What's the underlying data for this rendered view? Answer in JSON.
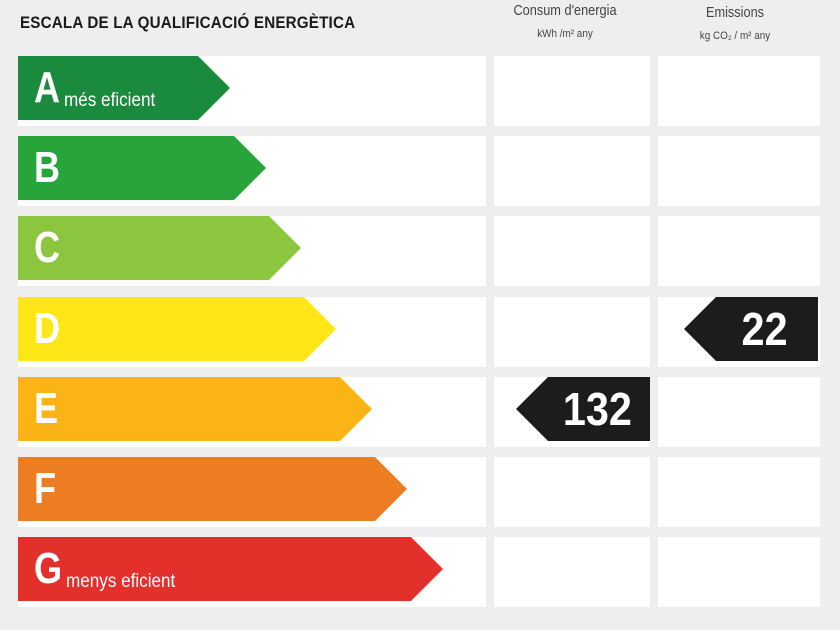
{
  "title": "ESCALA DE LA QUALIFICACIÓ ENERGÈTICA",
  "columns": {
    "energy": {
      "heading": "Consum d'energia",
      "unit": "kWh /m² any"
    },
    "emissions": {
      "heading": "Emissions",
      "unit": "kg CO₂ / m² any"
    }
  },
  "bands": [
    {
      "letter": "A",
      "desc": "més eficient",
      "color": "#1a8a3c"
    },
    {
      "letter": "B",
      "desc": "",
      "color": "#27a53a"
    },
    {
      "letter": "C",
      "desc": "",
      "color": "#8cc63f"
    },
    {
      "letter": "D",
      "desc": "",
      "color": "#ffe617"
    },
    {
      "letter": "E",
      "desc": "",
      "color": "#fbb416"
    },
    {
      "letter": "F",
      "desc": "",
      "color": "#ec7d23"
    },
    {
      "letter": "G",
      "desc": "menys eficient",
      "color": "#e3302b"
    }
  ],
  "ratings": {
    "energy": {
      "value": "132",
      "band": "E"
    },
    "emissions": {
      "value": "22",
      "band": "D"
    }
  },
  "value_color": "#1c1c1c"
}
